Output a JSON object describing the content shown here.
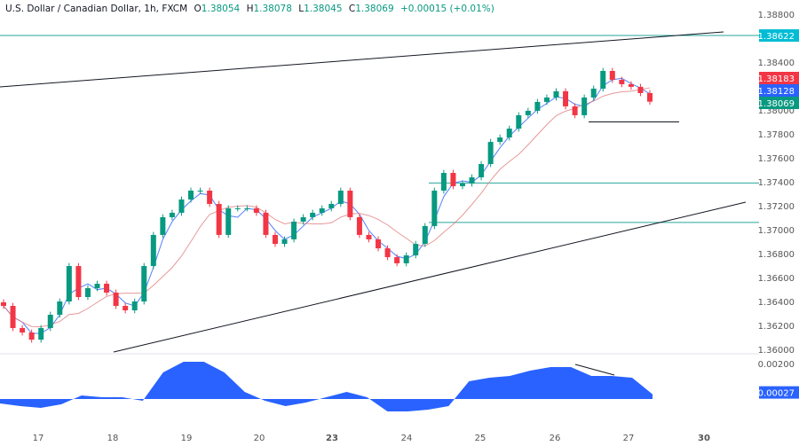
{
  "header": {
    "symbol": "U.S. Dollar / Canadian Dollar, 1h, FXCM",
    "open_label": "O",
    "open": "1.38054",
    "high_label": "H",
    "high": "1.38078",
    "low_label": "L",
    "low": "1.38045",
    "close_label": "C",
    "close": "1.38069",
    "change": "+0.00015 (+0.01%)"
  },
  "colors": {
    "up": "#089981",
    "down": "#f23645",
    "fast_ma": "#2962ff",
    "slow_ma": "#e08080",
    "level": "#26a69a",
    "oscillator": "#2962ff",
    "tag_cyan": "#00bcd4",
    "tag_red": "#f23645",
    "tag_blue": "#2962ff",
    "tag_green": "#089981"
  },
  "chart_data": [
    {
      "type": "candlestick",
      "title": "",
      "ylim": [
        1.3596,
        1.3888
      ],
      "y_ticks": [
        "1.38800",
        "1.38400",
        "1.38000",
        "1.37800",
        "1.37600",
        "1.37400",
        "1.37200",
        "1.37000",
        "1.36800",
        "1.36600",
        "1.36400",
        "1.36200",
        "1.36000"
      ],
      "y_tick_values": [
        1.388,
        1.384,
        1.38,
        1.378,
        1.376,
        1.374,
        1.372,
        1.37,
        1.368,
        1.366,
        1.364,
        1.362,
        1.36
      ],
      "x_ticks": [
        "17",
        "18",
        "19",
        "20",
        "23",
        "24",
        "25",
        "26",
        "27",
        "30"
      ],
      "close": [
        1.36363,
        1.36178,
        1.36141,
        1.36081,
        1.36178,
        1.36289,
        1.364,
        1.36696,
        1.36437,
        1.36511,
        1.36548,
        1.36474,
        1.36363,
        1.36326,
        1.364,
        1.36696,
        1.36956,
        1.37104,
        1.37141,
        1.37252,
        1.37326,
        1.37326,
        1.37215,
        1.36956,
        1.37178,
        1.37178,
        1.37178,
        1.37141,
        1.36956,
        1.36881,
        1.36919,
        1.37067,
        1.37104,
        1.37141,
        1.37178,
        1.37215,
        1.37326,
        1.37104,
        1.36956,
        1.36919,
        1.36844,
        1.3677,
        1.36719,
        1.36785,
        1.36881,
        1.3703,
        1.37326,
        1.37474,
        1.37363,
        1.37385,
        1.37437,
        1.37548,
        1.37733,
        1.3777,
        1.37844,
        1.37956,
        1.37993,
        1.38067,
        1.38104,
        1.38156,
        1.3803,
        1.37956,
        1.38104,
        1.38178,
        1.38326,
        1.38252,
        1.38215,
        1.38193,
        1.38141,
        1.38069
      ],
      "moving_averages": [
        {
          "color": "#2962ff"
        },
        {
          "color": "#e08080"
        }
      ],
      "horizontal_levels": [
        1.38622,
        1.3739,
        1.3706,
        1.379
      ],
      "price_tags": [
        {
          "label": "1.38622",
          "value": 1.38622,
          "color": "#00bcd4"
        },
        {
          "label": "1.38183",
          "value": 1.38183,
          "color": "#f23645"
        },
        {
          "label": "1.38128",
          "value": 1.38128,
          "color": "#2962ff"
        },
        {
          "label": "1.38069",
          "value": 1.38069,
          "color": "#089981"
        }
      ]
    },
    {
      "type": "area",
      "ylim": [
        -0.0009,
        0.0024
      ],
      "y_ticks": [
        "0.00200"
      ],
      "y_tick_values": [
        0.002
      ],
      "values": [
        -0.00025,
        -0.0004,
        -0.0005,
        -0.0003,
        0.0002,
        0.0001,
        0.0001,
        -0.0001,
        0.0015,
        0.0021,
        0.0021,
        0.0015,
        0.0004,
        -0.0001,
        -0.0004,
        -0.0002,
        0.0001,
        0.0004,
        0.0001,
        -0.0007,
        -0.0007,
        -0.0006,
        -0.0004,
        0.001,
        0.0012,
        0.0013,
        0.0016,
        0.0018,
        0.0018,
        0.0013,
        0.0013,
        0.0012,
        0.00027
      ],
      "current_tag": {
        "label": "0.00027",
        "value": 0.00027,
        "color": "#2962ff"
      }
    }
  ]
}
